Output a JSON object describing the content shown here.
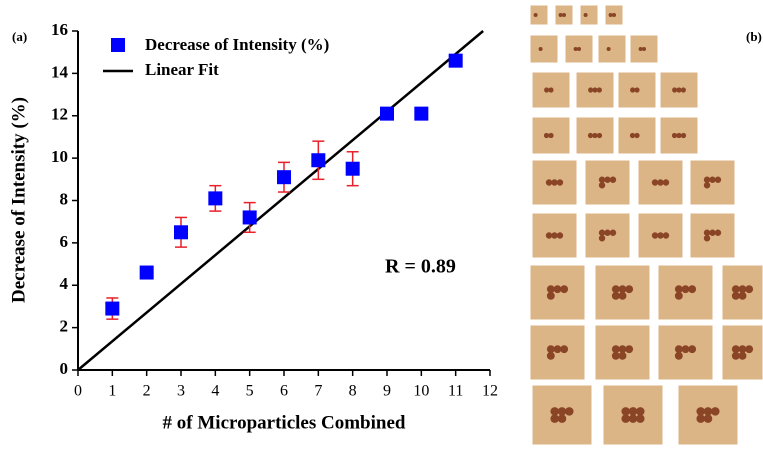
{
  "chart_data": {
    "type": "scatter",
    "panel_labels": [
      "(a)",
      "(b)"
    ],
    "xlabel": "# of Microparticles Combined",
    "ylabel": "Decrease of Intensity (%)",
    "annotation": "R = 0.89",
    "x": [
      1,
      2,
      3,
      4,
      5,
      6,
      7,
      8,
      9,
      10,
      11
    ],
    "series": [
      {
        "name": "Decrease of Intensity (%)",
        "color": "#0000ff",
        "error_color": "#e8202a",
        "values": [
          2.9,
          4.6,
          6.5,
          8.1,
          7.2,
          9.1,
          9.9,
          9.5,
          12.1,
          12.1,
          14.6
        ],
        "errors": [
          0.5,
          0.25,
          0.7,
          0.6,
          0.7,
          0.7,
          0.9,
          0.8,
          0,
          0,
          0
        ]
      }
    ],
    "fit": {
      "name": "Linear Fit",
      "color": "#000000",
      "x": [
        0,
        11.8
      ],
      "values": [
        0,
        16
      ]
    },
    "xlim": [
      0,
      12
    ],
    "ylim": [
      0,
      16
    ],
    "xticks": [
      0,
      1,
      2,
      3,
      4,
      5,
      6,
      7,
      8,
      9,
      10,
      11,
      12
    ],
    "yticks": [
      0,
      2,
      4,
      6,
      8,
      10,
      12,
      14,
      16
    ],
    "legend": "upper left"
  }
}
